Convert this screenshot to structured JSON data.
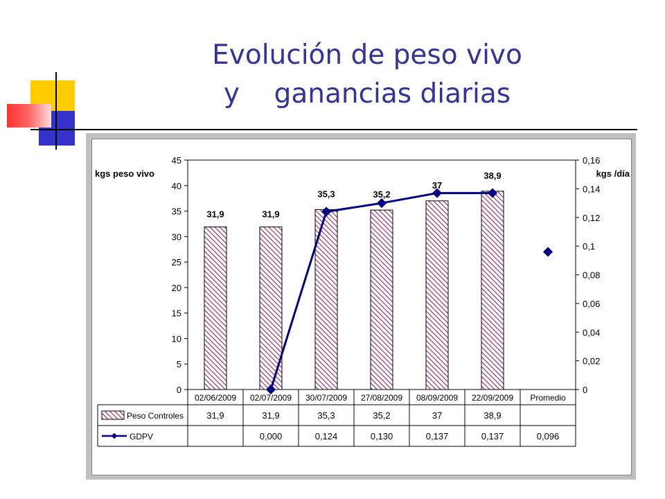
{
  "slide": {
    "title_line1": "Evolución de peso vivo",
    "title_line2": "y    ganancias diarias"
  },
  "colors": {
    "title": "#333399",
    "bar_hatch": "#993366",
    "line": "#000080",
    "frame": "#c0c0c0",
    "deco_yellow": "#ffcc00",
    "deco_blue": "#3333cc",
    "deco_red": "#ff3333"
  },
  "chart_data": {
    "type": "bar",
    "categories": [
      "02/06/2009",
      "02/07/2009",
      "30/07/2009",
      "27/08/2009",
      "08/09/2009",
      "22/09/2009",
      "Promedio"
    ],
    "ylabel": "kgs peso vivo",
    "y2label": "kgs /día",
    "ylim": [
      0,
      45
    ],
    "y_ticks": [
      "0",
      "5",
      "10",
      "15",
      "20",
      "25",
      "30",
      "35",
      "40",
      "45"
    ],
    "y2lim": [
      0,
      0.16
    ],
    "y2_ticks": [
      "0",
      "0,02",
      "0,04",
      "0,06",
      "0,08",
      "0,1",
      "0,12",
      "0,14",
      "0,16"
    ],
    "series": [
      {
        "name": "Peso Controles",
        "type": "bar",
        "axis": "left",
        "values": [
          31.9,
          31.9,
          35.3,
          35.2,
          37,
          38.9,
          null
        ],
        "labels": [
          "31,9",
          "31,9",
          "35,3",
          "35,2",
          "37",
          "38,9",
          ""
        ],
        "table_values": [
          "31,9",
          "31,9",
          "35,3",
          "35,2",
          "37",
          "38,9",
          ""
        ]
      },
      {
        "name": "GDPV",
        "type": "line",
        "axis": "right",
        "values": [
          null,
          0.0,
          0.124,
          0.13,
          0.137,
          0.137,
          0.096
        ],
        "table_values": [
          "",
          "0,000",
          "0,124",
          "0,130",
          "0,137",
          "0,137",
          "0,096"
        ]
      }
    ],
    "grid": false,
    "legend": "data-table"
  }
}
